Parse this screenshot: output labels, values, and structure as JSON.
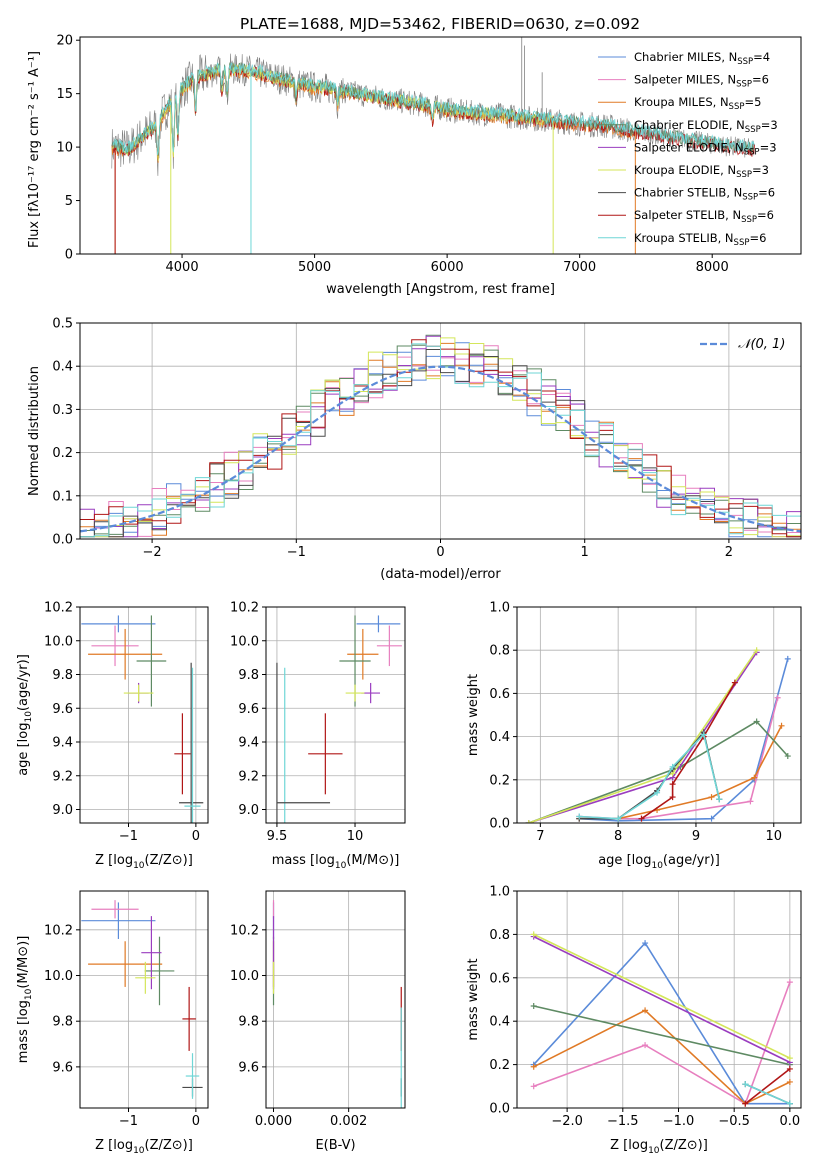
{
  "figure_title": "PLATE=1688, MJD=53462, FIBERID=0630, z=0.092",
  "colors": {
    "Chabrier MILES": "#5b8bd9",
    "Salpeter MILES": "#e77fbf",
    "Kroupa MILES": "#e07a26",
    "Chabrier ELODIE": "#5e8a63",
    "Salpeter ELODIE": "#9a3dbf",
    "Kroupa ELODIE": "#d4e65a",
    "Chabrier STELIB": "#4a4a4a",
    "Salpeter STELIB": "#b01616",
    "Kroupa STELIB": "#6fd6d6",
    "grid": "#b0b0b0",
    "data_spectrum": "#808080",
    "normal_curve": "#5b8bd9"
  },
  "chart_data": [
    {
      "id": "spectrum",
      "type": "line",
      "xlabel": "wavelength [Angstrom, rest frame]",
      "ylabel": "Flux [fλ10⁻¹⁷ erg cm⁻² s⁻¹ A⁻¹]",
      "xlim": [
        3230,
        8670
      ],
      "ylim": [
        0,
        20.3
      ],
      "xticks": [
        4000,
        5000,
        6000,
        7000,
        8000
      ],
      "yticks": [
        0,
        5,
        10,
        15,
        20
      ],
      "grid": false,
      "legend_position": "top-right",
      "legend": [
        {
          "base": "Chabrier MILES, N",
          "sub": "SSP",
          "tail": "=4",
          "color_key": "Chabrier MILES"
        },
        {
          "base": "Salpeter MILES, N",
          "sub": "SSP",
          "tail": "=6",
          "color_key": "Salpeter MILES"
        },
        {
          "base": "Kroupa MILES, N",
          "sub": "SSP",
          "tail": "=5",
          "color_key": "Kroupa MILES"
        },
        {
          "base": "Chabrier ELODIE, N",
          "sub": "SSP",
          "tail": "=3",
          "color_key": "Chabrier ELODIE"
        },
        {
          "base": "Salpeter ELODIE, N",
          "sub": "SSP",
          "tail": "=3",
          "color_key": "Salpeter ELODIE"
        },
        {
          "base": "Kroupa ELODIE, N",
          "sub": "SSP",
          "tail": "=3",
          "color_key": "Kroupa ELODIE"
        },
        {
          "base": "Chabrier STELIB, N",
          "sub": "SSP",
          "tail": "=6",
          "color_key": "Chabrier STELIB"
        },
        {
          "base": "Salpeter STELIB, N",
          "sub": "SSP",
          "tail": "=6",
          "color_key": "Salpeter STELIB"
        },
        {
          "base": "Kroupa STELIB, N",
          "sub": "SSP",
          "tail": "=6",
          "color_key": "Kroupa STELIB"
        }
      ],
      "continuum": {
        "x": [
          3500,
          3600,
          3700,
          3800,
          3900,
          4000,
          4100,
          4300,
          4500,
          4800,
          5000,
          5200,
          5500,
          5800,
          6100,
          6400,
          6700,
          7000,
          7200,
          7400,
          8000,
          8300
        ],
        "y": [
          10.0,
          9.8,
          11.0,
          12.0,
          14.0,
          15.5,
          16.5,
          17.3,
          17.2,
          16.2,
          15.6,
          15.3,
          14.6,
          14.0,
          13.3,
          13.0,
          12.6,
          12.2,
          12.0,
          11.5,
          10.3,
          9.8
        ]
      },
      "data_range": [
        3470,
        8320
      ],
      "emission_lines": [
        {
          "x": 6563,
          "y": 20.3
        },
        {
          "x": 6583,
          "y": 19.5
        },
        {
          "x": 6717,
          "y": 17.0
        }
      ]
    },
    {
      "id": "residuals",
      "type": "step",
      "xlabel": "(data-model)/error",
      "ylabel": "Normed distribution",
      "xlim": [
        -2.5,
        2.5
      ],
      "ylim": [
        0,
        0.5
      ],
      "xticks": [
        -2,
        -1,
        0,
        1,
        2
      ],
      "yticks": [
        0.0,
        0.1,
        0.2,
        0.3,
        0.4,
        0.5
      ],
      "grid": true,
      "legend_position": "top-right",
      "normal_label": "𝒩(0, 1)",
      "bin_width": 0.1,
      "bin_start": -2.5
    },
    {
      "id": "age-vs-Z",
      "type": "errorbar",
      "xlabel_main": "Z [log",
      "xlabel_sub": "10",
      "xlabel_tail": "(Z/Z⊙)]",
      "ylabel_main": "age  [log",
      "ylabel_sub": "10",
      "ylabel_tail": "(age/yr)]",
      "xlim": [
        -1.72,
        0.18
      ],
      "ylim": [
        8.92,
        10.2
      ],
      "xticks": [
        -1,
        0
      ],
      "yticks": [
        9.0,
        9.2,
        9.4,
        9.6,
        9.8,
        10.0,
        10.2
      ],
      "grid": true,
      "points": [
        {
          "model": "Chabrier MILES",
          "x": -1.15,
          "xerr": 0.55,
          "y": 10.1,
          "yerr": 0.05
        },
        {
          "model": "Salpeter MILES",
          "x": -1.2,
          "xerr": 0.35,
          "y": 9.97,
          "yerr": 0.12
        },
        {
          "model": "Kroupa MILES",
          "x": -1.05,
          "xerr": 0.55,
          "y": 9.92,
          "yerr": 0.15
        },
        {
          "model": "Chabrier ELODIE",
          "x": -0.66,
          "xerr": 0.22,
          "y": 9.88,
          "yerr": 0.27
        },
        {
          "model": "Salpeter ELODIE",
          "x": -0.85,
          "xerr": 0.15,
          "y": 9.69,
          "yerr": 0.06
        },
        {
          "model": "Kroupa ELODIE",
          "x": -0.85,
          "xerr": 0.22,
          "y": 9.69,
          "yerr": 0.05
        },
        {
          "model": "Chabrier STELIB",
          "x": -0.07,
          "xerr": 0.18,
          "y": 9.04,
          "yerr": 0.83
        },
        {
          "model": "Salpeter STELIB",
          "x": -0.2,
          "xerr": 0.12,
          "y": 9.33,
          "yerr": 0.24
        },
        {
          "model": "Kroupa STELIB",
          "x": -0.05,
          "xerr": 0.12,
          "y": 9.02,
          "yerr": 0.82
        }
      ]
    },
    {
      "id": "age-vs-mass",
      "type": "errorbar",
      "xlabel_main": "mass [log",
      "xlabel_sub": "10",
      "xlabel_tail": "(M/M⊙)]",
      "xlim": [
        9.43,
        10.32
      ],
      "ylim": [
        8.92,
        10.2
      ],
      "xticks": [
        9.5,
        10.0
      ],
      "yticks": [
        9.0,
        9.2,
        9.4,
        9.6,
        9.8,
        10.0,
        10.2
      ],
      "grid": true,
      "points": [
        {
          "model": "Chabrier MILES",
          "x": 10.15,
          "xerr": 0.14,
          "y": 10.1,
          "yerr": 0.05
        },
        {
          "model": "Salpeter MILES",
          "x": 10.22,
          "xerr": 0.08,
          "y": 9.97,
          "yerr": 0.12
        },
        {
          "model": "Kroupa MILES",
          "x": 10.05,
          "xerr": 0.1,
          "y": 9.92,
          "yerr": 0.15
        },
        {
          "model": "Chabrier ELODIE",
          "x": 10.0,
          "xerr": 0.1,
          "y": 9.88,
          "yerr": 0.27
        },
        {
          "model": "Salpeter ELODIE",
          "x": 10.1,
          "xerr": 0.06,
          "y": 9.69,
          "yerr": 0.06
        },
        {
          "model": "Kroupa ELODIE",
          "x": 10.0,
          "xerr": 0.06,
          "y": 9.69,
          "yerr": 0.05
        },
        {
          "model": "Chabrier STELIB",
          "x": 9.5,
          "xerr": 0.0,
          "y": 9.04,
          "yerr": 0.83
        },
        {
          "model": "Salpeter STELIB",
          "x": 9.81,
          "xerr": 0.11,
          "y": 9.33,
          "yerr": 0.24
        },
        {
          "model": "Kroupa STELIB",
          "x": 9.55,
          "xerr": 0.0,
          "y": 9.02,
          "yerr": 0.82
        },
        {
          "model": "Chabrier STELIB",
          "x": 9.67,
          "xerr": 0.17,
          "y": 9.04,
          "yerr": 0.0
        }
      ]
    },
    {
      "id": "massweight-vs-age",
      "type": "line",
      "xlabel_main": "age  [log",
      "xlabel_sub": "10",
      "xlabel_tail": "(age/yr)]",
      "ylabel": "mass weight",
      "xlim": [
        6.7,
        10.35
      ],
      "ylim": [
        0,
        1.0
      ],
      "xticks": [
        7,
        8,
        9,
        10
      ],
      "yticks": [
        0.0,
        0.2,
        0.4,
        0.6,
        0.8,
        1.0
      ],
      "grid": true,
      "series": [
        {
          "model": "Chabrier MILES",
          "x": [
            7.5,
            8.0,
            9.2,
            9.75,
            10.18
          ],
          "y": [
            0.02,
            0.01,
            0.02,
            0.2,
            0.76
          ]
        },
        {
          "model": "Salpeter MILES",
          "x": [
            7.5,
            8.0,
            8.3,
            9.7,
            10.05
          ],
          "y": [
            0.03,
            0.02,
            0.02,
            0.1,
            0.58
          ]
        },
        {
          "model": "Kroupa MILES",
          "x": [
            7.5,
            8.0,
            8.5,
            9.2,
            9.75,
            10.1
          ],
          "y": [
            0.02,
            0.02,
            0.06,
            0.12,
            0.21,
            0.45
          ]
        },
        {
          "model": "Chabrier ELODIE",
          "x": [
            6.85,
            8.8,
            9.78,
            10.18
          ],
          "y": [
            0.0,
            0.26,
            0.47,
            0.31
          ]
        },
        {
          "model": "Salpeter ELODIE",
          "x": [
            6.85,
            8.7,
            9.78
          ],
          "y": [
            0.0,
            0.21,
            0.79
          ]
        },
        {
          "model": "Kroupa ELODIE",
          "x": [
            6.85,
            8.7,
            9.78
          ],
          "y": [
            0.0,
            0.23,
            0.8
          ]
        },
        {
          "model": "Chabrier STELIB",
          "x": [
            7.5,
            8.0,
            8.5,
            8.7,
            9.1,
            9.3
          ],
          "y": [
            0.02,
            0.02,
            0.15,
            0.25,
            0.42,
            0.11
          ]
        },
        {
          "model": "Salpeter STELIB",
          "x": [
            8.3,
            8.7,
            8.7,
            9.1,
            9.5
          ],
          "y": [
            0.02,
            0.12,
            0.18,
            0.4,
            0.65
          ]
        },
        {
          "model": "Kroupa STELIB",
          "x": [
            7.5,
            8.0,
            8.5,
            8.7,
            9.1,
            9.3
          ],
          "y": [
            0.03,
            0.02,
            0.14,
            0.26,
            0.41,
            0.11
          ]
        }
      ]
    },
    {
      "id": "mass-vs-Z",
      "type": "errorbar",
      "xlabel_main": "Z [log",
      "xlabel_sub": "10",
      "xlabel_tail": "(Z/Z⊙)]",
      "ylabel_main": "mass [log",
      "ylabel_sub": "10",
      "ylabel_tail": "(M/M⊙)]",
      "xlim": [
        -1.72,
        0.18
      ],
      "ylim": [
        9.42,
        10.37
      ],
      "xticks": [
        -1,
        0
      ],
      "yticks": [
        9.6,
        9.8,
        10.0,
        10.2
      ],
      "grid": true,
      "points": [
        {
          "model": "Chabrier MILES",
          "x": -1.15,
          "xerr": 0.55,
          "y": 10.24,
          "yerr": 0.08
        },
        {
          "model": "Salpeter MILES",
          "x": -1.2,
          "xerr": 0.35,
          "y": 10.29,
          "yerr": 0.04
        },
        {
          "model": "Kroupa MILES",
          "x": -1.05,
          "xerr": 0.55,
          "y": 10.05,
          "yerr": 0.1
        },
        {
          "model": "Chabrier ELODIE",
          "x": -0.54,
          "xerr": 0.22,
          "y": 10.02,
          "yerr": 0.15
        },
        {
          "model": "Salpeter ELODIE",
          "x": -0.66,
          "xerr": 0.15,
          "y": 10.1,
          "yerr": 0.16
        },
        {
          "model": "Kroupa ELODIE",
          "x": -0.75,
          "xerr": 0.15,
          "y": 9.99,
          "yerr": 0.07
        },
        {
          "model": "Chabrier STELIB",
          "x": -0.05,
          "xerr": 0.15,
          "y": 9.51,
          "yerr": 0.04
        },
        {
          "model": "Salpeter STELIB",
          "x": -0.1,
          "xerr": 0.1,
          "y": 9.81,
          "yerr": 0.14
        },
        {
          "model": "Kroupa STELIB",
          "x": -0.05,
          "xerr": 0.1,
          "y": 9.56,
          "yerr": 0.1
        }
      ]
    },
    {
      "id": "mass-vs-ebv",
      "type": "errorbar",
      "xlabel": "E(B-V)",
      "xlim": [
        -0.0002,
        0.0035
      ],
      "ylim": [
        9.42,
        10.37
      ],
      "xticks": [
        0.0,
        0.002
      ],
      "xticklabels": [
        "0.000",
        "0.002"
      ],
      "yticks": [
        9.6,
        9.8,
        10.0,
        10.2
      ],
      "grid": true,
      "points": [
        {
          "model": "Chabrier MILES",
          "x": 0.0,
          "y": 10.24,
          "yerr": 0.08
        },
        {
          "model": "Salpeter MILES",
          "x": 0.0,
          "y": 10.29,
          "yerr": 0.04
        },
        {
          "model": "Kroupa MILES",
          "x": 0.0,
          "y": 10.05,
          "yerr": 0.1
        },
        {
          "model": "Chabrier ELODIE",
          "x": 0.0,
          "y": 10.02,
          "yerr": 0.15
        },
        {
          "model": "Salpeter ELODIE",
          "x": 0.0,
          "y": 10.1,
          "yerr": 0.16
        },
        {
          "model": "Kroupa ELODIE",
          "x": 0.0,
          "y": 9.99,
          "yerr": 0.07
        },
        {
          "model": "Chabrier STELIB",
          "x": 0.0034,
          "y": 9.51,
          "yerr": 0.04
        },
        {
          "model": "Salpeter STELIB",
          "x": 0.0034,
          "y": 9.81,
          "yerr": 0.14
        },
        {
          "model": "Kroupa STELIB",
          "x": 0.0034,
          "y": 9.56,
          "yerr": 0.3
        }
      ]
    },
    {
      "id": "massweight-vs-Z",
      "type": "line",
      "xlabel_main": "Z [log",
      "xlabel_sub": "10",
      "xlabel_tail": "(Z/Z⊙)]",
      "ylabel": "mass weight",
      "xlim": [
        -2.45,
        0.1
      ],
      "ylim": [
        0,
        1.0
      ],
      "xticks": [
        -2.0,
        -1.5,
        -1.0,
        -0.5,
        0.0
      ],
      "xticklabels": [
        "−2.0",
        "−1.5",
        "−1.0",
        "−0.5",
        "0.0"
      ],
      "yticks": [
        0.0,
        0.2,
        0.4,
        0.6,
        0.8,
        1.0
      ],
      "grid": true,
      "series": [
        {
          "model": "Chabrier MILES",
          "x": [
            -2.3,
            -1.3,
            -0.4,
            0.0
          ],
          "y": [
            0.2,
            0.76,
            0.02,
            0.02
          ]
        },
        {
          "model": "Salpeter MILES",
          "x": [
            -2.3,
            -1.3,
            -0.4,
            0.0
          ],
          "y": [
            0.1,
            0.29,
            0.02,
            0.58
          ]
        },
        {
          "model": "Kroupa MILES",
          "x": [
            -2.3,
            -1.3,
            -0.4,
            0.0
          ],
          "y": [
            0.19,
            0.45,
            0.02,
            0.12
          ]
        },
        {
          "model": "Chabrier ELODIE",
          "x": [
            -2.3,
            0.0
          ],
          "y": [
            0.47,
            0.2
          ]
        },
        {
          "model": "Salpeter ELODIE",
          "x": [
            -2.3,
            0.0
          ],
          "y": [
            0.79,
            0.21
          ]
        },
        {
          "model": "Kroupa ELODIE",
          "x": [
            -2.3,
            0.0
          ],
          "y": [
            0.8,
            0.23
          ]
        },
        {
          "model": "Chabrier STELIB",
          "x": [
            -0.4,
            0.0
          ],
          "y": [
            0.11,
            0.02
          ]
        },
        {
          "model": "Salpeter STELIB",
          "x": [
            -0.4,
            0.0
          ],
          "y": [
            0.02,
            0.18
          ]
        },
        {
          "model": "Kroupa STELIB",
          "x": [
            -0.4,
            0.0
          ],
          "y": [
            0.11,
            0.02
          ]
        }
      ]
    }
  ]
}
